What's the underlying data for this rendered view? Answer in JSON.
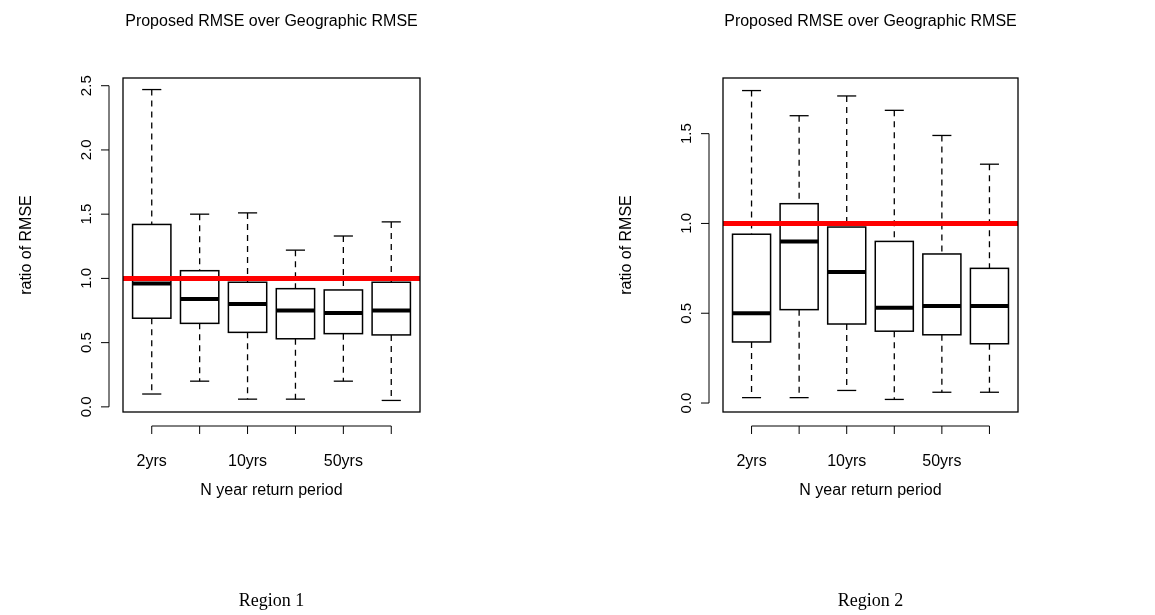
{
  "chart_data": [
    {
      "type": "box",
      "title": "Proposed RMSE over Geographic RMSE",
      "xlabel": "N year return period",
      "ylabel": "ratio of RMSE",
      "categories": [
        "2yrs",
        null,
        "10yrs",
        null,
        "50yrs",
        null
      ],
      "boxes": [
        {
          "low": 0.1,
          "q1": 0.69,
          "median": 0.96,
          "q3": 1.42,
          "high": 2.47
        },
        {
          "low": 0.2,
          "q1": 0.65,
          "median": 0.84,
          "q3": 1.06,
          "high": 1.5
        },
        {
          "low": 0.06,
          "q1": 0.58,
          "median": 0.8,
          "q3": 0.97,
          "high": 1.51
        },
        {
          "low": 0.06,
          "q1": 0.53,
          "median": 0.75,
          "q3": 0.92,
          "high": 1.22
        },
        {
          "low": 0.2,
          "q1": 0.57,
          "median": 0.73,
          "q3": 0.91,
          "high": 1.33
        },
        {
          "low": 0.05,
          "q1": 0.56,
          "median": 0.75,
          "q3": 0.97,
          "high": 1.44
        }
      ],
      "ylim": [
        -0.04,
        2.56
      ],
      "yticks": [
        {
          "value": 0,
          "label": "0.0"
        },
        0.5,
        {
          "value": 1,
          "label": "1.0"
        },
        1.5,
        {
          "value": 2,
          "label": "2.0"
        },
        2.5
      ],
      "ref_lines": [
        {
          "axis": "y",
          "value": 1,
          "color": "#ff0000"
        }
      ],
      "annotations": [
        "Region 1"
      ]
    },
    {
      "type": "box",
      "title": "Proposed RMSE over Geographic RMSE",
      "xlabel": "N year return period",
      "ylabel": "ratio of RMSE",
      "categories": [
        "2yrs",
        null,
        "10yrs",
        null,
        "50yrs",
        null
      ],
      "boxes": [
        {
          "low": 0.03,
          "q1": 0.34,
          "median": 0.5,
          "q3": 0.94,
          "high": 1.74
        },
        {
          "low": 0.03,
          "q1": 0.52,
          "median": 0.9,
          "q3": 1.11,
          "high": 1.6
        },
        {
          "low": 0.07,
          "q1": 0.44,
          "median": 0.73,
          "q3": 0.98,
          "high": 1.71
        },
        {
          "low": 0.02,
          "q1": 0.4,
          "median": 0.53,
          "q3": 0.9,
          "high": 1.63
        },
        {
          "low": 0.06,
          "q1": 0.38,
          "median": 0.54,
          "q3": 0.83,
          "high": 1.49
        },
        {
          "low": 0.06,
          "q1": 0.33,
          "median": 0.54,
          "q3": 0.75,
          "high": 1.33
        }
      ],
      "ylim": [
        -0.05,
        1.81
      ],
      "yticks": [
        {
          "value": 0,
          "label": "0.0"
        },
        0.5,
        {
          "value": 1,
          "label": "1.0"
        },
        1.5
      ],
      "ref_lines": [
        {
          "axis": "y",
          "value": 1,
          "color": "#ff0000"
        }
      ],
      "annotations": [
        "Region 2"
      ]
    }
  ]
}
